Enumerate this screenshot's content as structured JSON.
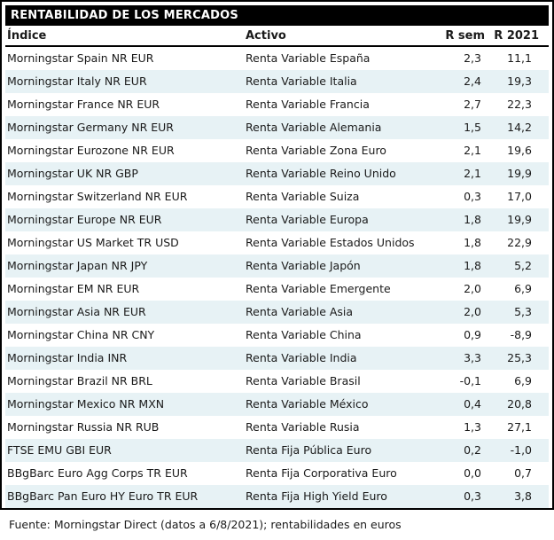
{
  "table": {
    "title": "RENTABILIDAD DE LOS MERCADOS",
    "columns": [
      "Índice",
      "Activo",
      "R sem",
      "R 2021"
    ],
    "rows": [
      {
        "indice": "Morningstar Spain NR EUR",
        "activo": "Renta Variable España",
        "r_sem": "2,3",
        "r_2021": "11,1"
      },
      {
        "indice": "Morningstar Italy NR EUR",
        "activo": "Renta Variable Italia",
        "r_sem": "2,4",
        "r_2021": "19,3"
      },
      {
        "indice": "Morningstar France NR EUR",
        "activo": "Renta Variable Francia",
        "r_sem": "2,7",
        "r_2021": "22,3"
      },
      {
        "indice": "Morningstar Germany NR EUR",
        "activo": "Renta Variable Alemania",
        "r_sem": "1,5",
        "r_2021": "14,2"
      },
      {
        "indice": "Morningstar Eurozone NR EUR",
        "activo": "Renta Variable Zona Euro",
        "r_sem": "2,1",
        "r_2021": "19,6"
      },
      {
        "indice": "Morningstar UK NR GBP",
        "activo": "Renta Variable Reino Unido",
        "r_sem": "2,1",
        "r_2021": "19,9"
      },
      {
        "indice": "Morningstar Switzerland NR EUR",
        "activo": "Renta Variable Suiza",
        "r_sem": "0,3",
        "r_2021": "17,0"
      },
      {
        "indice": "Morningstar Europe NR EUR",
        "activo": "Renta Variable Europa",
        "r_sem": "1,8",
        "r_2021": "19,9"
      },
      {
        "indice": "Morningstar US Market TR USD",
        "activo": "Renta Variable Estados Unidos",
        "r_sem": "1,8",
        "r_2021": "22,9"
      },
      {
        "indice": "Morningstar Japan NR JPY",
        "activo": "Renta Variable Japón",
        "r_sem": "1,8",
        "r_2021": "5,2"
      },
      {
        "indice": "Morningstar EM NR EUR",
        "activo": "Renta Variable Emergente",
        "r_sem": "2,0",
        "r_2021": "6,9"
      },
      {
        "indice": "Morningstar Asia NR EUR",
        "activo": "Renta Variable Asia",
        "r_sem": "2,0",
        "r_2021": "5,3"
      },
      {
        "indice": "Morningstar China NR CNY",
        "activo": "Renta Variable China",
        "r_sem": "0,9",
        "r_2021": "-8,9"
      },
      {
        "indice": "Morningstar India INR",
        "activo": "Renta Variable India",
        "r_sem": "3,3",
        "r_2021": "25,3"
      },
      {
        "indice": "Morningstar Brazil NR BRL",
        "activo": "Renta Variable Brasil",
        "r_sem": "-0,1",
        "r_2021": "6,9"
      },
      {
        "indice": "Morningstar Mexico NR MXN",
        "activo": "Renta Variable México",
        "r_sem": "0,4",
        "r_2021": "20,8"
      },
      {
        "indice": "Morningstar Russia NR RUB",
        "activo": "Renta Variable Rusia",
        "r_sem": "1,3",
        "r_2021": "27,1"
      },
      {
        "indice": "FTSE EMU GBI EUR",
        "activo": "Renta Fija Pública Euro",
        "r_sem": "0,2",
        "r_2021": "-1,0"
      },
      {
        "indice": "BBgBarc Euro Agg Corps TR EUR",
        "activo": "Renta Fija Corporativa Euro",
        "r_sem": "0,0",
        "r_2021": "0,7"
      },
      {
        "indice": "BBgBarc Pan Euro HY Euro TR EUR",
        "activo": "Renta Fija High Yield Euro",
        "r_sem": "0,3",
        "r_2021": "3,8"
      }
    ],
    "footer": "Fuente: Morningstar Direct (datos a 6/8/2021); rentabilidades en euros"
  },
  "colors": {
    "alt_row": "#e7f2f5",
    "titlebar_bg": "#000000",
    "titlebar_text": "#ffffff",
    "text": "#1a1a1a",
    "border": "#000000"
  }
}
